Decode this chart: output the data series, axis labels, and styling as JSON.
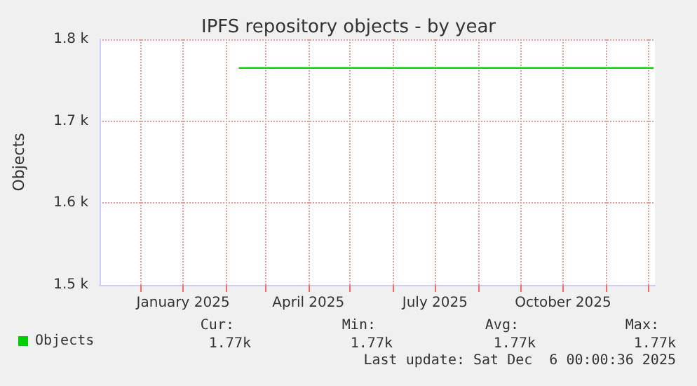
{
  "chart_data": {
    "type": "line",
    "title": "IPFS repository objects - by year",
    "ylabel": "Objects",
    "x": [
      "2025-02-10",
      "2025-12-05"
    ],
    "series": [
      {
        "name": "Objects",
        "color": "#00cc00",
        "values": [
          1765,
          1765
        ]
      }
    ],
    "xlim": [
      "2024-11-02",
      "2025-12-06"
    ],
    "xticks": [
      {
        "value": "2024-12-01",
        "label": null
      },
      {
        "value": "2025-01-01",
        "label": "January 2025"
      },
      {
        "value": "2025-02-01",
        "label": null
      },
      {
        "value": "2025-03-01",
        "label": null
      },
      {
        "value": "2025-04-01",
        "label": "April 2025"
      },
      {
        "value": "2025-05-01",
        "label": null
      },
      {
        "value": "2025-06-01",
        "label": null
      },
      {
        "value": "2025-07-01",
        "label": "July 2025"
      },
      {
        "value": "2025-08-01",
        "label": null
      },
      {
        "value": "2025-09-01",
        "label": null
      },
      {
        "value": "2025-10-01",
        "label": "October 2025"
      },
      {
        "value": "2025-11-01",
        "label": null
      },
      {
        "value": "2025-12-01",
        "label": null
      }
    ],
    "ylim": [
      1500,
      1800
    ],
    "yticks": [
      {
        "value": 1500,
        "label": "1.5 k"
      },
      {
        "value": 1600,
        "label": "1.6 k"
      },
      {
        "value": 1700,
        "label": "1.7 k"
      },
      {
        "value": 1800,
        "label": "1.8 k"
      }
    ],
    "grid": true,
    "legend": "bottom left",
    "marker": "none",
    "line_style": "solid",
    "annotations": [
      "Cur:",
      "Min:",
      "Avg:",
      "Max:",
      "1.77k",
      "1.77k",
      "1.77k",
      "1.77k",
      "Last update: Sat Dec  6 00:00:36 2025"
    ]
  }
}
